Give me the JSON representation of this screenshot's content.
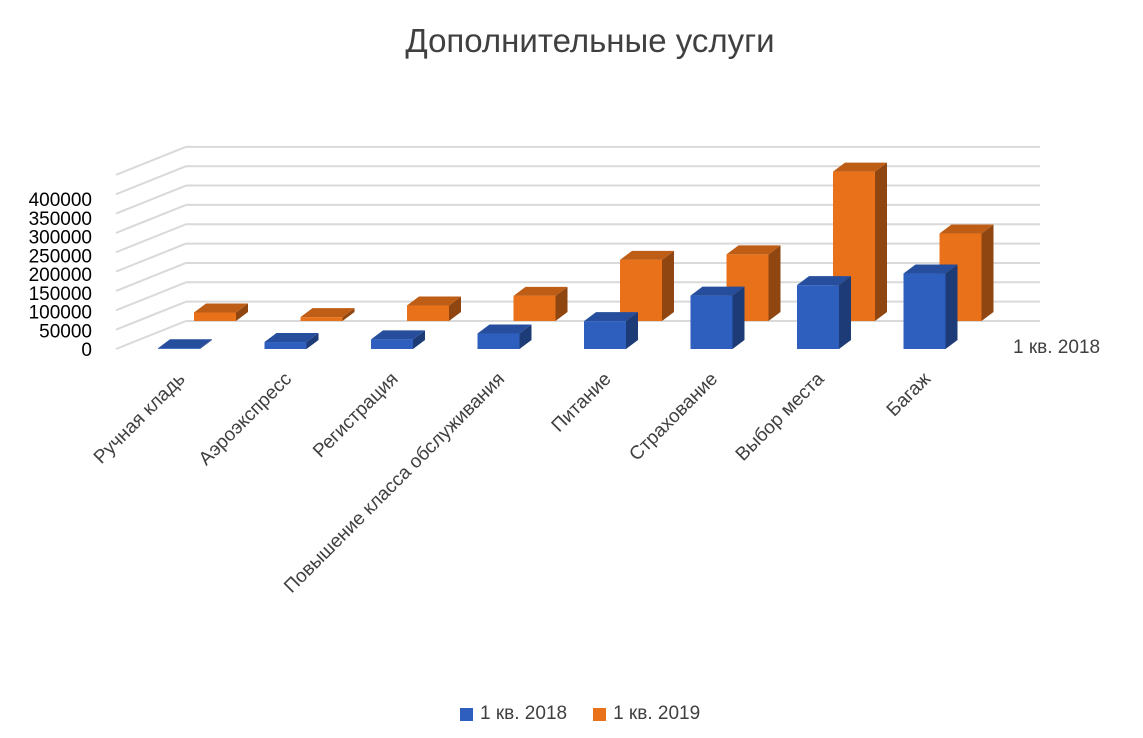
{
  "chart_data": {
    "type": "bar",
    "title": "Дополнительные услуги",
    "categories": [
      "Ручная кладь",
      "Аэроэкспресс",
      "Регистрация",
      "Повышение класса обслуживания",
      "Питание",
      "Страхование",
      "Выбор места",
      "Багаж"
    ],
    "series": [
      {
        "name": "1 кв. 2018",
        "color": "#2e5fbf",
        "values": [
          2000,
          18000,
          25000,
          40000,
          72000,
          138000,
          165000,
          195000
        ]
      },
      {
        "name": "1 кв. 2019",
        "color": "#e8711a",
        "values": [
          22000,
          10000,
          40000,
          65000,
          158000,
          172000,
          386000,
          226000
        ]
      }
    ],
    "ylim": [
      0,
      450000
    ],
    "y_ticks": [
      "0",
      "50000",
      "100000",
      "150000",
      "200000",
      "250000",
      "300000",
      "350000",
      "400000"
    ],
    "depth_label": "1 кв. 2018",
    "gridlines": true,
    "legend_position": "bottom"
  }
}
